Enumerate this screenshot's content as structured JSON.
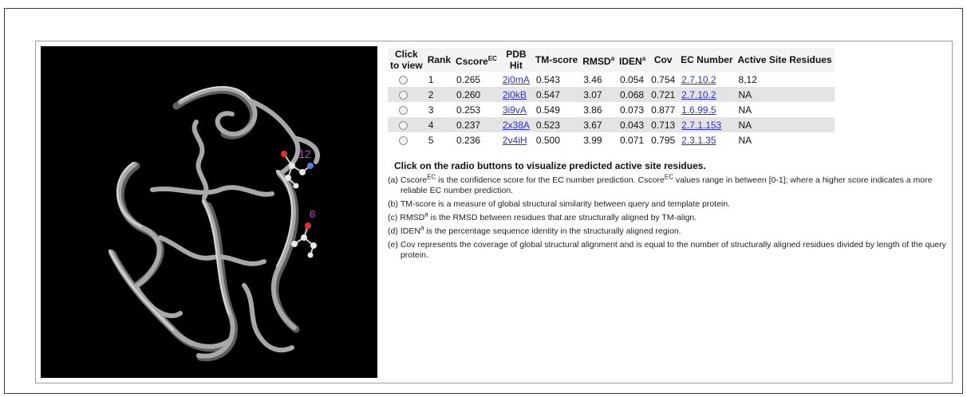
{
  "table": {
    "headers": {
      "click": [
        "Click",
        "to view"
      ],
      "rank": "Rank",
      "cscore": "Cscore",
      "cscore_sup": "EC",
      "pdb": [
        "PDB",
        "Hit"
      ],
      "tmscore": "TM-score",
      "rmsd": "RMSD",
      "rmsd_sup": "a",
      "iden": "IDEN",
      "iden_sup": "a",
      "cov": "Cov",
      "ec": "EC Number",
      "active": "Active Site Residues"
    },
    "rows": [
      {
        "rank": "1",
        "cscore": "0.265",
        "pdb": "2j0mA",
        "tm": "0.543",
        "rmsd": "3.46",
        "iden": "0.054",
        "cov": "0.754",
        "ec": "2.7.10.2",
        "active": "8,12"
      },
      {
        "rank": "2",
        "cscore": "0.260",
        "pdb": "2j0kB",
        "tm": "0.547",
        "rmsd": "3.07",
        "iden": "0.068",
        "cov": "0.721",
        "ec": "2.7.10.2",
        "active": "NA"
      },
      {
        "rank": "3",
        "cscore": "0.253",
        "pdb": "3i9vA",
        "tm": "0.549",
        "rmsd": "3.86",
        "iden": "0.073",
        "cov": "0.877",
        "ec": "1.6.99.5",
        "active": "NA"
      },
      {
        "rank": "4",
        "cscore": "0.237",
        "pdb": "2x38A",
        "tm": "0.523",
        "rmsd": "3.67",
        "iden": "0.043",
        "cov": "0.713",
        "ec": "2.7.1.153",
        "active": "NA"
      },
      {
        "rank": "5",
        "cscore": "0.236",
        "pdb": "2v4iH",
        "tm": "0.500",
        "rmsd": "3.99",
        "iden": "0.071",
        "cov": "0.795",
        "ec": "2.3.1.35",
        "active": "NA"
      }
    ]
  },
  "viewer": {
    "residue_labels": [
      "12",
      "8"
    ],
    "background": "#000000",
    "ribbon_color": "#a8a8a8",
    "label_color": "#d43ad4"
  },
  "instructions": "Click on the radio buttons to visualize predicted active site residues.",
  "notes": [
    {
      "marker": "(a)",
      "parts": [
        "Cscore",
        "EC",
        " is the confidence score for the EC number prediction. Cscore",
        "EC",
        " values range in between [0-1]; where a higher score indicates a more reliable EC number prediction."
      ]
    },
    {
      "marker": "(b)",
      "text": "TM-score is a measure of global structural similarity between query and template protein."
    },
    {
      "marker": "(c)",
      "parts": [
        "RMSD",
        "a",
        " is the RMSD between residues that are structurally aligned by TM-align."
      ]
    },
    {
      "marker": "(d)",
      "parts": [
        "IDEN",
        "a",
        " is the percentage sequence identity in the structurally aligned region."
      ]
    },
    {
      "marker": "(e)",
      "text": "Cov represents the coverage of global structural alignment and is equal to the number of structurally aligned residues divided by length of the query protein."
    }
  ],
  "colors": {
    "link": "#2a32c8",
    "alt_row": "#e4e4e4"
  }
}
